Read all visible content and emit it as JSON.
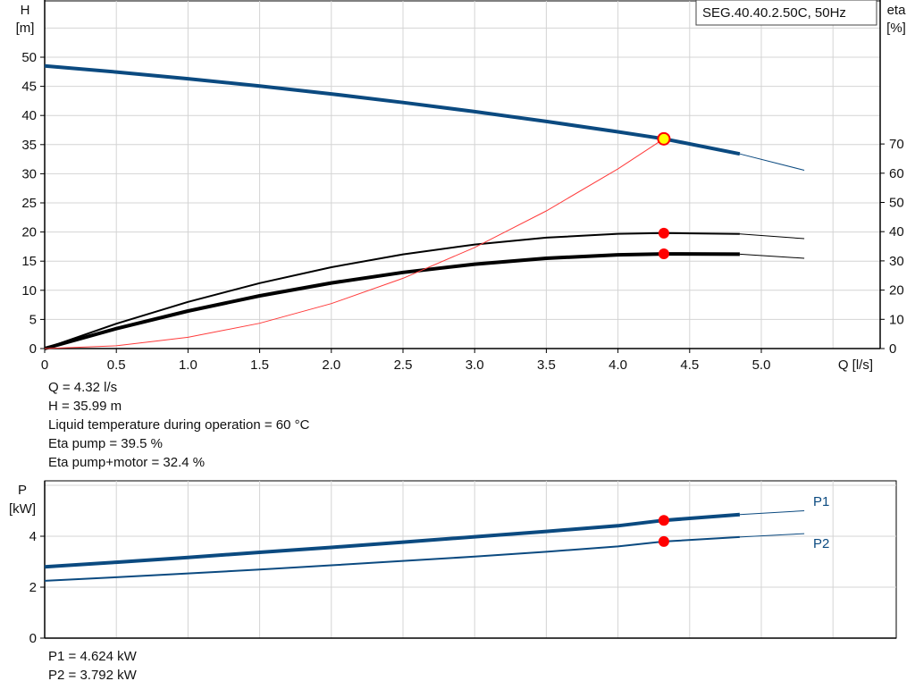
{
  "chart_data": [
    {
      "type": "line",
      "title": "SEG.40.40.2.50C, 50Hz",
      "xlabel": "Q [l/s]",
      "ylabel_left": [
        "H",
        "[m]"
      ],
      "ylabel_right": [
        "eta",
        "[%]"
      ],
      "xlim": [
        0,
        5.8
      ],
      "ylim_left": [
        0,
        60
      ],
      "ylim_right": [
        0,
        120
      ],
      "x_ticks": [
        "0",
        "0.5",
        "1.0",
        "1.5",
        "2.0",
        "2.5",
        "3.0",
        "3.5",
        "4.0",
        "4.5",
        "5.0"
      ],
      "x_tick_values": [
        0,
        0.5,
        1,
        1.5,
        2,
        2.5,
        3,
        3.5,
        4,
        4.5,
        5
      ],
      "y_ticks_left": [
        0,
        5,
        10,
        15,
        20,
        25,
        30,
        35,
        40,
        45,
        50
      ],
      "y_ticks_right": [
        0,
        10,
        20,
        30,
        40,
        50,
        60,
        70
      ],
      "grid": true,
      "x": [
        0,
        0.5,
        1,
        1.5,
        2,
        2.5,
        3,
        3.5,
        4,
        4.32,
        4.85,
        5.3
      ],
      "thick_until": 4.85,
      "series": [
        {
          "name": "H",
          "axis": "left",
          "color": "#0b4a80",
          "values": [
            48.5,
            47.46,
            46.31,
            45.06,
            43.7,
            42.23,
            40.66,
            38.98,
            37.19,
            35.99,
            33.4,
            30.6
          ]
        },
        {
          "name": "Eta pump",
          "axis": "right",
          "color": "#000000",
          "thin": true,
          "values": [
            0,
            8.49,
            15.96,
            22.4,
            27.82,
            32.22,
            35.6,
            37.95,
            39.28,
            39.5,
            39.2,
            37.6
          ]
        },
        {
          "name": "Eta pump+motor",
          "axis": "right",
          "color": "#000000",
          "values": [
            0,
            6.82,
            12.84,
            18.05,
            22.46,
            26.07,
            28.88,
            30.88,
            32.08,
            32.4,
            32.28,
            30.9
          ]
        },
        {
          "name": "System curve",
          "axis": "left",
          "color": "#ff3b3b",
          "thin": true,
          "values": [
            0,
            0.48,
            1.93,
            4.34,
            7.71,
            12.05,
            17.35,
            23.62,
            30.85,
            35.99,
            null,
            null
          ]
        }
      ],
      "duty_point": {
        "Q": 4.32,
        "H": 35.99,
        "eta_pump": 39.5,
        "eta_total": 32.4
      }
    },
    {
      "type": "line",
      "ylabel": [
        "P",
        "[kW]"
      ],
      "xlim": [
        0,
        5.8
      ],
      "ylim": [
        0,
        6.2
      ],
      "y_ticks": [
        0,
        2,
        4
      ],
      "grid": true,
      "x": [
        0,
        0.5,
        1,
        1.5,
        2,
        2.5,
        3,
        3.5,
        4,
        4.32,
        4.85,
        5.3
      ],
      "thick_until": 4.85,
      "series": [
        {
          "name": "P1",
          "color": "#0b4a80",
          "values": [
            2.8,
            2.98,
            3.17,
            3.37,
            3.56,
            3.77,
            3.98,
            4.19,
            4.41,
            4.624,
            4.85,
            5.0
          ]
        },
        {
          "name": "P2",
          "color": "#0b4a80",
          "thin": true,
          "values": [
            2.25,
            2.39,
            2.54,
            2.69,
            2.86,
            3.03,
            3.2,
            3.39,
            3.6,
            3.792,
            3.97,
            4.1
          ]
        }
      ],
      "duty_point": {
        "Q": 4.32,
        "P1": 4.624,
        "P2": 3.792
      }
    }
  ],
  "info_top": [
    "Q = 4.32 l/s",
    "H = 35.99 m",
    "Liquid temperature during operation = 60 °C",
    "Eta pump = 39.5 %",
    "Eta pump+motor = 32.4 %"
  ],
  "info_bottom": [
    "P1 = 4.624 kW",
    "P2 = 3.792 kW"
  ]
}
